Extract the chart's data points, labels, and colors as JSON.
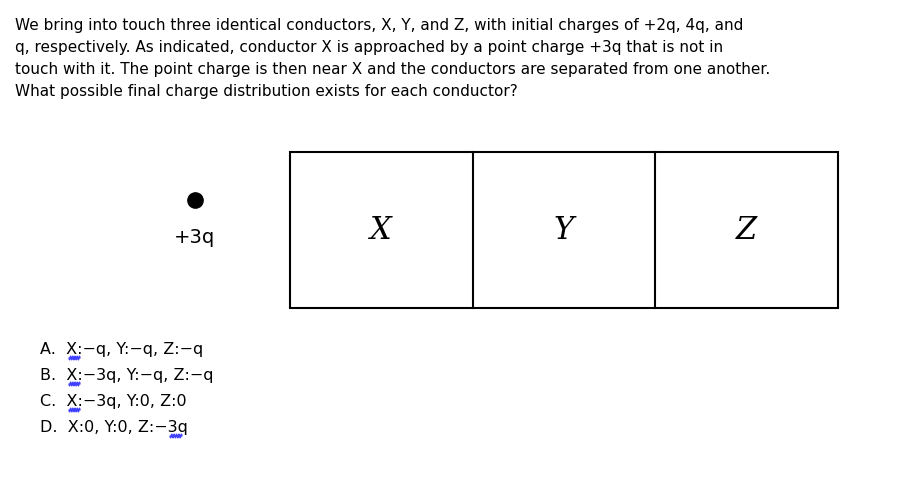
{
  "paragraph_lines": [
    "We bring into touch three identical conductors, X, Y, and Z, with initial charges of +2q, 4q, and",
    "q, respectively. As indicated, conductor X is approached by a point charge +3q that is not in",
    "touch with it. The point charge is then near X and the conductors are separated from one another.",
    "What possible final charge distribution exists for each conductor?"
  ],
  "point_charge_label": "+3q",
  "conductor_labels": [
    "X",
    "Y",
    "Z"
  ],
  "options_A": "A.  X:−q, Y:−q, Z:−q",
  "options_B": "B.  X:−3q, Y:−q, Z:−q",
  "options_C": "C.  X:−3q, Y:0, Z:0",
  "options_D": "D.  X:0, Y:0, Z:−3q",
  "bg_color": "#ffffff",
  "text_color": "#000000",
  "wavy_color": "#4040ff",
  "para_fontsize": 11.0,
  "label_fontsize": 22,
  "option_fontsize": 11.5,
  "charge_fontsize": 14
}
